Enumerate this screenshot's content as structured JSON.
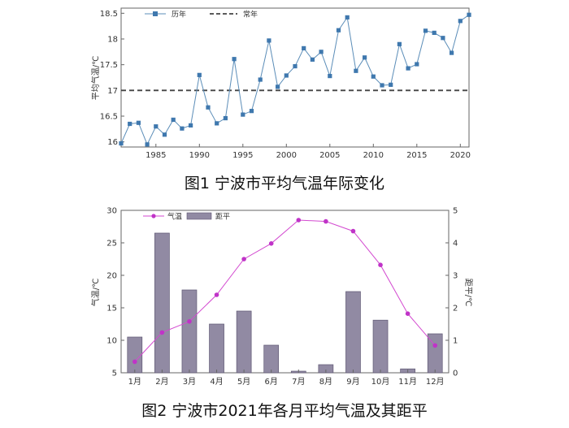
{
  "chart_data": [
    {
      "type": "line",
      "caption": "图1  宁波市平均气温年际变化",
      "ylabel": "平均气温/℃",
      "xlabel": "",
      "ylim": [
        15.9,
        18.6
      ],
      "xlim": [
        1981,
        2021
      ],
      "yticks": [
        "16",
        "16.5",
        "17",
        "17.5",
        "18",
        "18.5"
      ],
      "xticks": [
        "1985",
        "1990",
        "1995",
        "2000",
        "2005",
        "2010",
        "2015",
        "2020"
      ],
      "legend_position": "top-left",
      "grid": false,
      "x": [
        1981,
        1982,
        1983,
        1984,
        1985,
        1986,
        1987,
        1988,
        1989,
        1990,
        1991,
        1992,
        1993,
        1994,
        1995,
        1996,
        1997,
        1998,
        1999,
        2000,
        2001,
        2002,
        2003,
        2004,
        2005,
        2006,
        2007,
        2008,
        2009,
        2010,
        2011,
        2012,
        2013,
        2014,
        2015,
        2016,
        2017,
        2018,
        2019,
        2020,
        2021
      ],
      "series": [
        {
          "name": "历年",
          "values": [
            15.97,
            16.35,
            16.37,
            15.95,
            16.3,
            16.14,
            16.43,
            16.26,
            16.32,
            17.3,
            16.67,
            16.36,
            16.46,
            17.61,
            16.53,
            16.6,
            17.21,
            17.97,
            17.07,
            17.29,
            17.47,
            17.82,
            17.6,
            17.75,
            17.28,
            18.17,
            18.42,
            17.38,
            17.64,
            17.27,
            17.1,
            17.11,
            17.9,
            17.43,
            17.51,
            18.16,
            18.12,
            18.02,
            17.73,
            18.35,
            18.47
          ]
        },
        {
          "name": "常年",
          "value": 17.0
        }
      ],
      "colors": {
        "line": "#5b8db8",
        "marker": "#3f78ae",
        "normal": "#444444"
      }
    },
    {
      "type": "bar+line",
      "caption": "图2  宁波市2021年各月平均气温及其距平",
      "ylabel_left": "气温/℃",
      "ylabel_right": "距平/℃",
      "ylim_left": [
        5,
        30
      ],
      "ylim_right": [
        0,
        5
      ],
      "yticks_left": [
        "5",
        "10",
        "15",
        "20",
        "25",
        "30"
      ],
      "yticks_right": [
        "0",
        "1",
        "2",
        "3",
        "4",
        "5"
      ],
      "categories": [
        "1月",
        "2月",
        "3月",
        "4月",
        "5月",
        "6月",
        "7月",
        "8月",
        "9月",
        "10月",
        "11月",
        "12月"
      ],
      "legend_position": "top-left",
      "grid": false,
      "series": [
        {
          "name": "气温",
          "type": "line",
          "axis": "left",
          "values": [
            6.7,
            11.2,
            12.9,
            17.0,
            22.5,
            24.9,
            28.5,
            28.3,
            26.8,
            21.6,
            14.1,
            9.2
          ]
        },
        {
          "name": "距平",
          "type": "bar",
          "axis": "right",
          "values": [
            1.1,
            4.3,
            2.55,
            1.5,
            1.9,
            0.85,
            0.05,
            0.25,
            2.5,
            1.62,
            0.12,
            1.2
          ]
        }
      ],
      "colors": {
        "line": "#d34ad0",
        "marker": "#c033c8",
        "bar": "#918aa3",
        "bar_edge": "#5f5873"
      }
    }
  ]
}
